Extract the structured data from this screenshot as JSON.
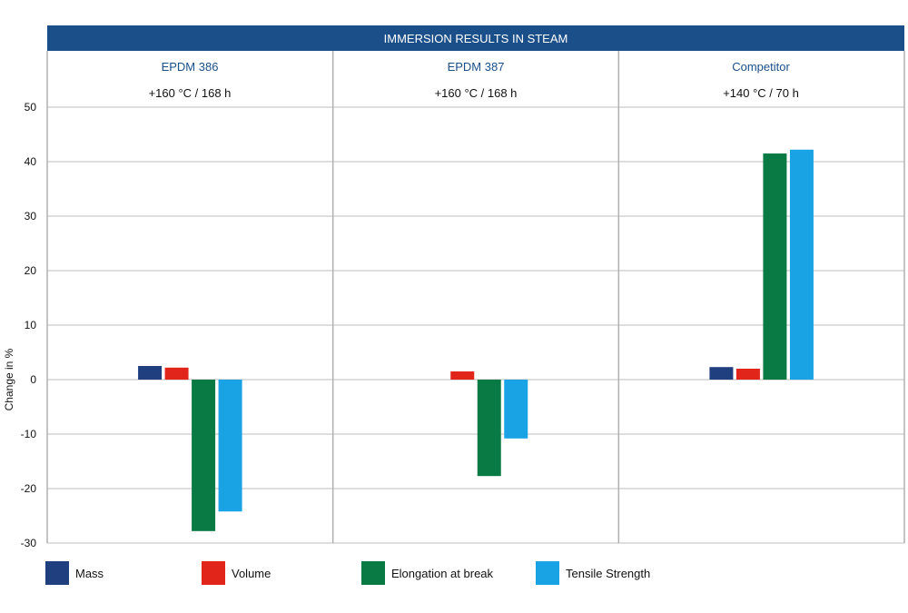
{
  "chart_data": {
    "type": "bar",
    "title": "IMMERSION RESULTS IN STEAM",
    "ylabel": "Change in %",
    "ylim": [
      -30,
      50
    ],
    "yticks": [
      50,
      40,
      30,
      20,
      10,
      0,
      -10,
      -20,
      -30
    ],
    "grid": true,
    "legend_position": "bottom",
    "categories": [
      "EPDM 386",
      "EPDM 387",
      "Competitor"
    ],
    "conditions": [
      "+160 °C / 168 h",
      "+160 °C / 168 h",
      "+140 °C / 70 h"
    ],
    "series": [
      {
        "name": "Mass",
        "color": "#1f3f7f",
        "values": [
          2.5,
          null,
          2.3
        ]
      },
      {
        "name": "Volume",
        "color": "#e1251b",
        "values": [
          2.2,
          1.5,
          2.0
        ]
      },
      {
        "name": "Elongation at break",
        "color": "#0a7a45",
        "values": [
          -27.8,
          -17.7,
          41.5
        ]
      },
      {
        "name": "Tensile Strength",
        "color": "#1aa3e4",
        "values": [
          -24.2,
          -10.8,
          42.2
        ]
      }
    ]
  },
  "colors": {
    "header_bg": "#1b4f8a",
    "header_text": "#ffffff",
    "category_text": "#1b4f8a",
    "grid": "#bdbdbd",
    "divider": "#b0b0b0",
    "text": "#111111"
  }
}
